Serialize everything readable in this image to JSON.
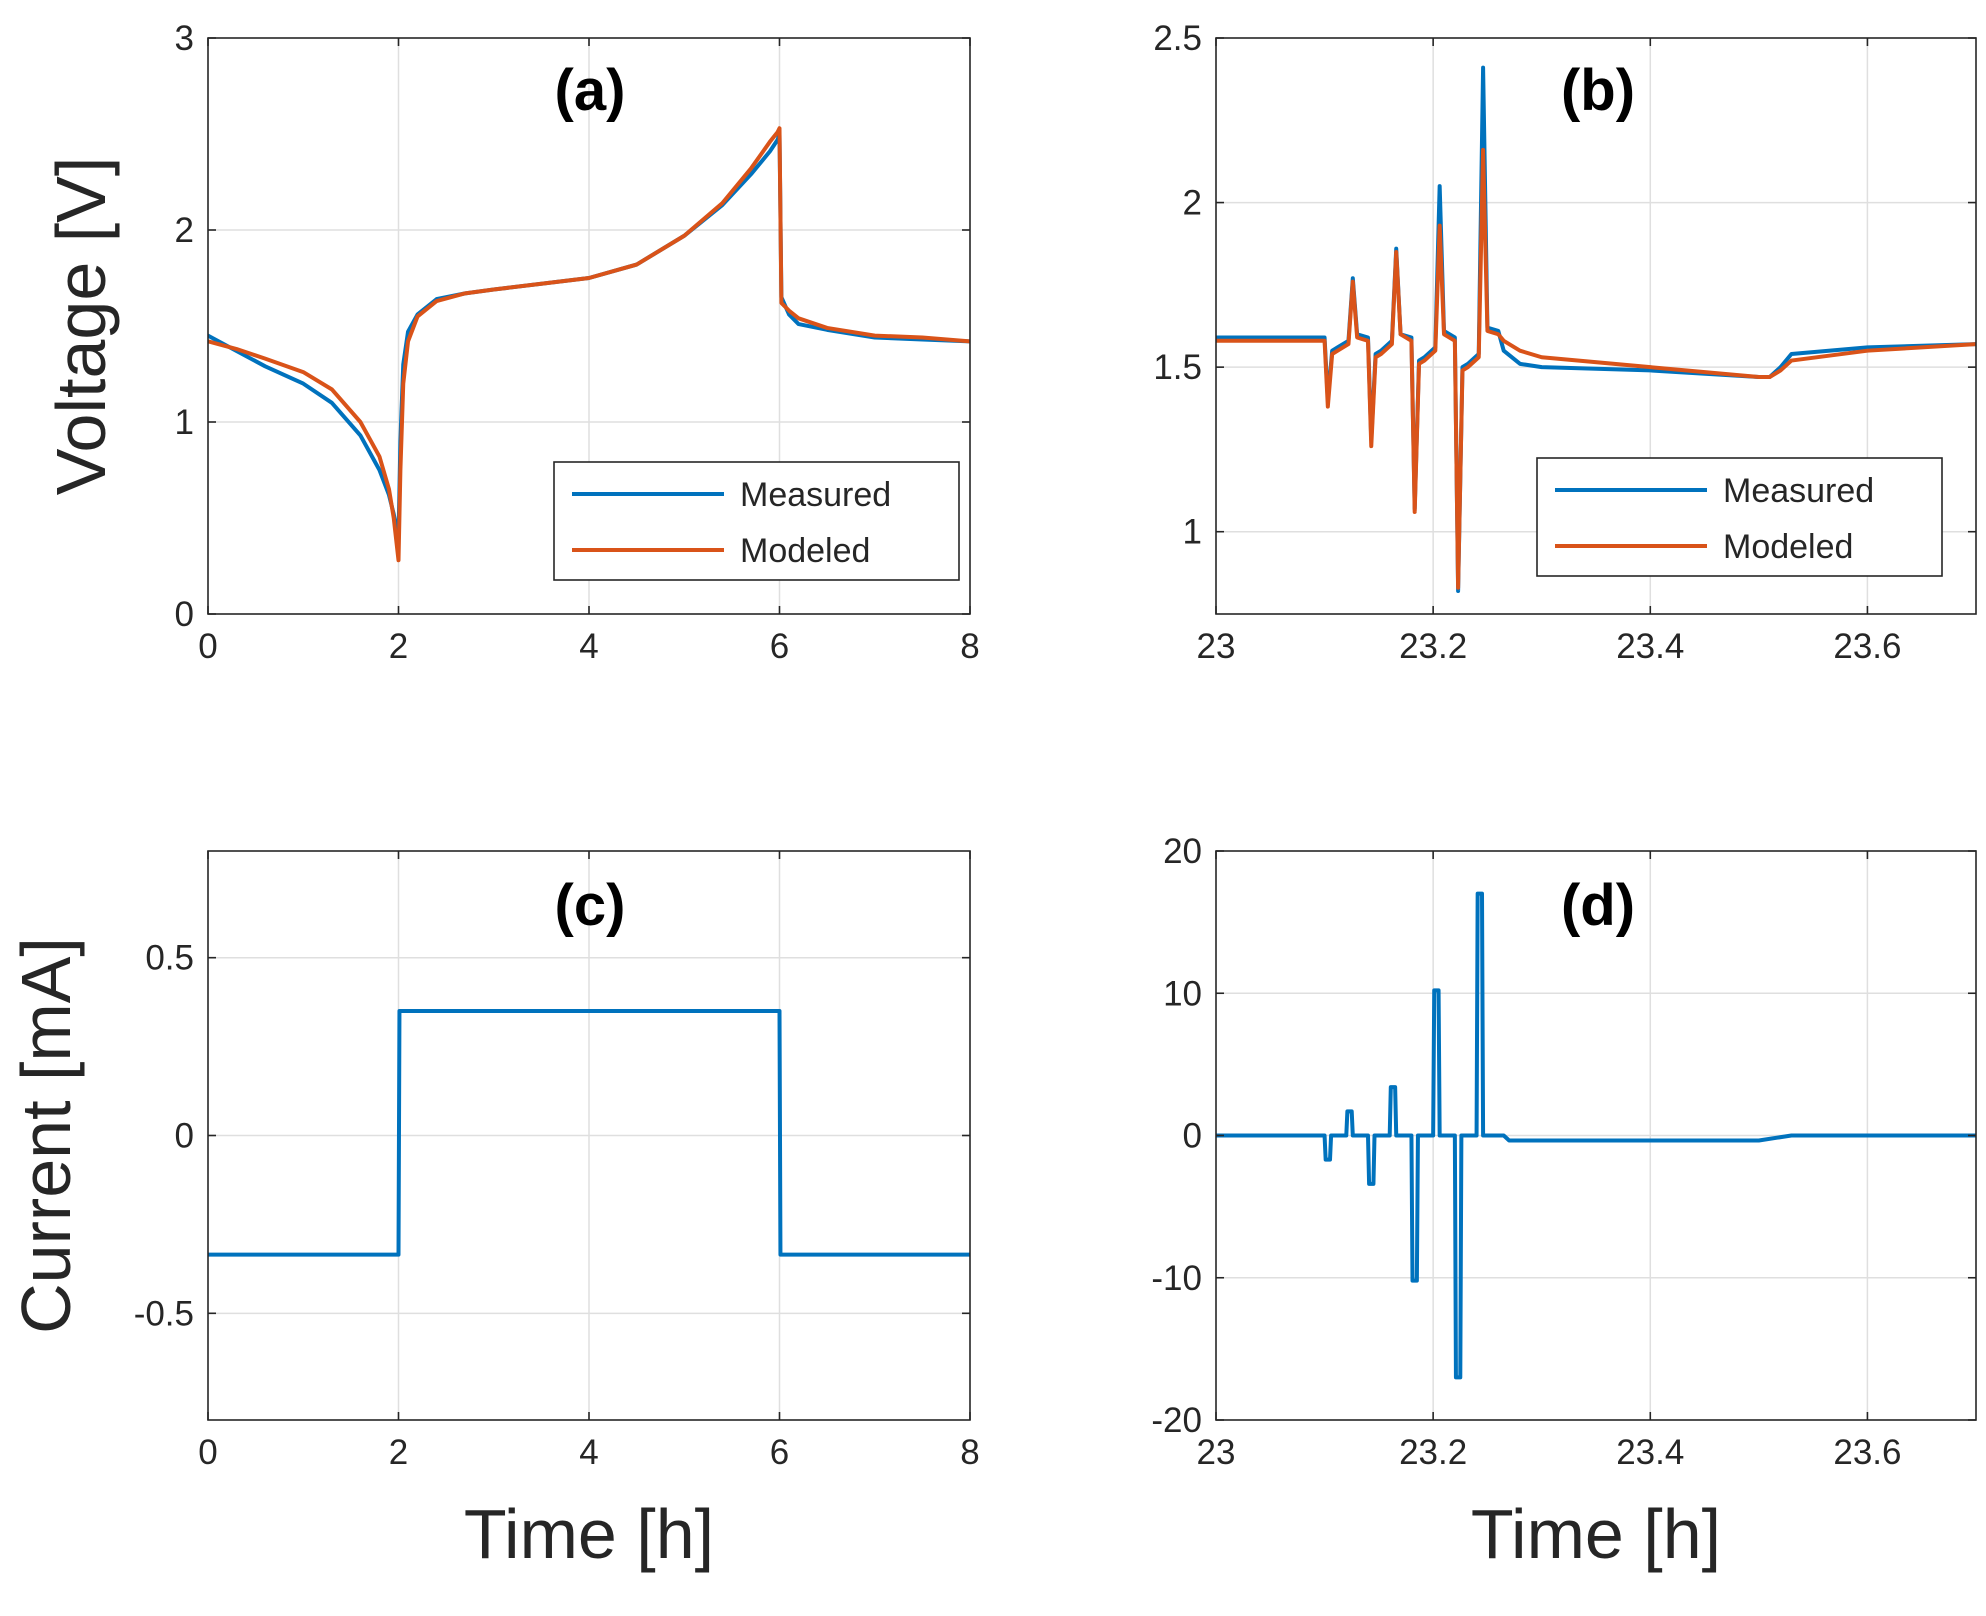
{
  "colors": {
    "measured": "#0072BD",
    "modeled": "#D95319",
    "axis": "#262626",
    "grid": "#dfdfdf"
  },
  "chart_data": [
    {
      "id": "a",
      "type": "line",
      "panel_label": "(a)",
      "xlabel": "",
      "ylabel": "Voltage [V]",
      "xlim": [
        0,
        8
      ],
      "ylim": [
        0,
        3
      ],
      "xticks": [
        0,
        2,
        4,
        6,
        8
      ],
      "xtick_labels": [
        "0",
        "2",
        "4",
        "6",
        "8"
      ],
      "yticks": [
        0,
        1,
        2,
        3
      ],
      "ytick_labels": [
        "0",
        "1",
        "2",
        "3"
      ],
      "grid": true,
      "legend": {
        "position": "bottom-right",
        "entries": [
          "Measured",
          "Modeled"
        ]
      },
      "series": [
        {
          "name": "Measured",
          "color_key": "measured",
          "x": [
            0,
            0.3,
            0.6,
            1.0,
            1.3,
            1.6,
            1.8,
            1.9,
            1.95,
            2.0,
            2.02,
            2.05,
            2.1,
            2.2,
            2.4,
            2.7,
            3.0,
            3.5,
            4.0,
            4.5,
            5.0,
            5.4,
            5.7,
            5.9,
            5.98,
            6.0,
            6.02,
            6.1,
            6.2,
            6.5,
            7.0,
            7.5,
            8.0
          ],
          "y": [
            1.45,
            1.37,
            1.29,
            1.2,
            1.1,
            0.93,
            0.75,
            0.62,
            0.52,
            0.4,
            0.9,
            1.3,
            1.47,
            1.56,
            1.64,
            1.67,
            1.69,
            1.72,
            1.75,
            1.82,
            1.97,
            2.13,
            2.29,
            2.41,
            2.47,
            2.5,
            1.65,
            1.56,
            1.51,
            1.48,
            1.44,
            1.43,
            1.42
          ]
        },
        {
          "name": "Modeled",
          "color_key": "modeled",
          "x": [
            0,
            0.3,
            0.6,
            1.0,
            1.3,
            1.6,
            1.8,
            1.9,
            1.95,
            2.0,
            2.02,
            2.05,
            2.1,
            2.2,
            2.4,
            2.7,
            3.0,
            3.5,
            4.0,
            4.5,
            5.0,
            5.4,
            5.7,
            5.9,
            5.98,
            6.0,
            6.02,
            6.1,
            6.2,
            6.5,
            7.0,
            7.5,
            8.0
          ],
          "y": [
            1.42,
            1.38,
            1.33,
            1.26,
            1.17,
            1.0,
            0.82,
            0.65,
            0.5,
            0.28,
            0.75,
            1.2,
            1.42,
            1.55,
            1.63,
            1.67,
            1.69,
            1.72,
            1.75,
            1.82,
            1.97,
            2.14,
            2.32,
            2.46,
            2.51,
            2.53,
            1.62,
            1.58,
            1.54,
            1.49,
            1.45,
            1.44,
            1.42
          ]
        }
      ]
    },
    {
      "id": "b",
      "type": "line",
      "panel_label": "(b)",
      "xlabel": "",
      "ylabel": "",
      "xlim": [
        23,
        23.7
      ],
      "ylim": [
        0.75,
        2.5
      ],
      "xticks": [
        23,
        23.2,
        23.4,
        23.6
      ],
      "xtick_labels": [
        "23",
        "23.2",
        "23.4",
        "23.6"
      ],
      "yticks": [
        1,
        1.5,
        2,
        2.5
      ],
      "ytick_labels": [
        "1",
        "1.5",
        "2",
        "2.5"
      ],
      "grid": true,
      "legend": {
        "position": "bottom-right",
        "entries": [
          "Measured",
          "Modeled"
        ]
      },
      "series": [
        {
          "name": "Measured",
          "color_key": "measured",
          "x": [
            23.0,
            23.1,
            23.103,
            23.107,
            23.112,
            23.122,
            23.126,
            23.13,
            23.14,
            23.143,
            23.147,
            23.152,
            23.162,
            23.166,
            23.17,
            23.18,
            23.183,
            23.187,
            23.192,
            23.202,
            23.206,
            23.21,
            23.22,
            23.223,
            23.227,
            23.232,
            23.242,
            23.246,
            23.25,
            23.26,
            23.265,
            23.28,
            23.3,
            23.4,
            23.5,
            23.51,
            23.52,
            23.53,
            23.6,
            23.7
          ],
          "y": [
            1.59,
            1.59,
            1.4,
            1.55,
            1.56,
            1.58,
            1.77,
            1.6,
            1.59,
            1.28,
            1.54,
            1.55,
            1.58,
            1.86,
            1.6,
            1.59,
            1.07,
            1.52,
            1.53,
            1.56,
            2.05,
            1.61,
            1.59,
            0.82,
            1.5,
            1.51,
            1.54,
            2.41,
            1.62,
            1.61,
            1.55,
            1.51,
            1.5,
            1.49,
            1.47,
            1.47,
            1.5,
            1.54,
            1.56,
            1.57
          ]
        },
        {
          "name": "Modeled",
          "color_key": "modeled",
          "x": [
            23.0,
            23.1,
            23.103,
            23.107,
            23.112,
            23.122,
            23.126,
            23.13,
            23.14,
            23.143,
            23.147,
            23.152,
            23.162,
            23.166,
            23.17,
            23.18,
            23.183,
            23.187,
            23.192,
            23.202,
            23.206,
            23.21,
            23.22,
            23.223,
            23.227,
            23.232,
            23.242,
            23.246,
            23.25,
            23.26,
            23.265,
            23.28,
            23.3,
            23.4,
            23.5,
            23.51,
            23.52,
            23.53,
            23.6,
            23.7
          ],
          "y": [
            1.58,
            1.58,
            1.38,
            1.54,
            1.55,
            1.57,
            1.76,
            1.59,
            1.58,
            1.26,
            1.53,
            1.54,
            1.57,
            1.85,
            1.6,
            1.58,
            1.06,
            1.51,
            1.52,
            1.55,
            1.93,
            1.6,
            1.58,
            0.83,
            1.49,
            1.5,
            1.53,
            2.16,
            1.61,
            1.6,
            1.58,
            1.55,
            1.53,
            1.5,
            1.47,
            1.47,
            1.49,
            1.52,
            1.55,
            1.57
          ]
        }
      ]
    },
    {
      "id": "c",
      "type": "line",
      "panel_label": "(c)",
      "xlabel": "Time [h]",
      "ylabel": "Current [mA]",
      "xlim": [
        0,
        8
      ],
      "ylim": [
        -0.8,
        0.8
      ],
      "xticks": [
        0,
        2,
        4,
        6,
        8
      ],
      "xtick_labels": [
        "0",
        "2",
        "4",
        "6",
        "8"
      ],
      "yticks": [
        -0.5,
        0,
        0.5
      ],
      "ytick_labels": [
        "-0.5",
        "0",
        "0.5"
      ],
      "grid": true,
      "series": [
        {
          "name": "",
          "color_key": "measured",
          "x": [
            0,
            2.0,
            2.01,
            6.0,
            6.01,
            8.0
          ],
          "y": [
            -0.335,
            -0.335,
            0.35,
            0.35,
            -0.335,
            -0.335
          ]
        }
      ]
    },
    {
      "id": "d",
      "type": "line",
      "panel_label": "(d)",
      "xlabel": "Time [h]",
      "ylabel": "",
      "xlim": [
        23,
        23.7
      ],
      "ylim": [
        -20,
        20
      ],
      "xticks": [
        23,
        23.2,
        23.4,
        23.6
      ],
      "xtick_labels": [
        "23",
        "23.2",
        "23.4",
        "23.6"
      ],
      "yticks": [
        -20,
        -10,
        0,
        10,
        20
      ],
      "ytick_labels": [
        "-20",
        "-10",
        "0",
        "10",
        "20"
      ],
      "grid": true,
      "series": [
        {
          "name": "",
          "color_key": "measured",
          "x": [
            23.0,
            23.1,
            23.101,
            23.105,
            23.106,
            23.12,
            23.121,
            23.125,
            23.126,
            23.14,
            23.141,
            23.145,
            23.146,
            23.16,
            23.161,
            23.165,
            23.166,
            23.18,
            23.181,
            23.185,
            23.186,
            23.2,
            23.201,
            23.205,
            23.206,
            23.22,
            23.221,
            23.225,
            23.226,
            23.24,
            23.241,
            23.245,
            23.246,
            23.265,
            23.27,
            23.5,
            23.53,
            23.7
          ],
          "y": [
            0,
            0,
            -1.7,
            -1.7,
            0,
            0,
            1.7,
            1.7,
            0,
            0,
            -3.4,
            -3.4,
            0,
            0,
            3.4,
            3.4,
            0,
            0,
            -10.2,
            -10.2,
            0,
            0,
            10.2,
            10.2,
            0,
            0,
            -17,
            -17,
            0,
            0,
            17,
            17,
            0,
            0,
            -0.35,
            -0.35,
            0,
            0
          ]
        }
      ]
    }
  ]
}
